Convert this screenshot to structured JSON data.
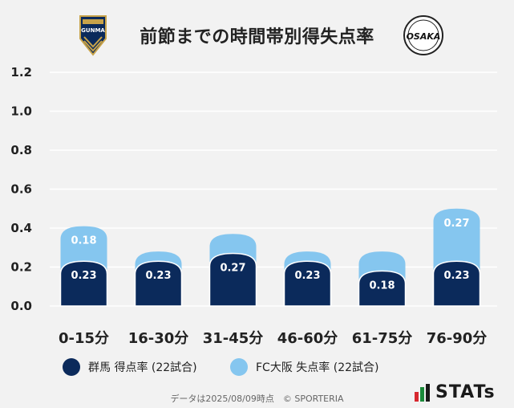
{
  "header": {
    "title": "前節までの時間帯別得失点率",
    "left_logo_text": "GUNMA",
    "right_logo_text": "OSAKA"
  },
  "legend": {
    "items": [
      {
        "label": "群馬 得点率 (22試合)",
        "color": "#0b2a5b"
      },
      {
        "label": "FC大阪 失点率 (22試合)",
        "color": "#85c6ef"
      }
    ]
  },
  "footer": {
    "note": "データは2025/08/09時点　© SPORTERIA",
    "brand": "STATs"
  },
  "chart_data": {
    "type": "bar",
    "categories": [
      "0-15分",
      "16-30分",
      "31-45分",
      "46-60分",
      "61-75分",
      "76-90分"
    ],
    "series": [
      {
        "name": "群馬 得点率 (22試合)",
        "values": [
          0.23,
          0.23,
          0.27,
          0.23,
          0.18,
          0.23
        ],
        "labels": [
          "0.23",
          "0.23",
          "0.27",
          "0.23",
          "0.18",
          "0.23"
        ],
        "color": "#0b2a5b"
      },
      {
        "name": "FC大阪 失点率 (22試合)",
        "values": [
          0.18,
          0.05,
          0.1,
          0.05,
          0.1,
          0.27
        ],
        "labels": [
          "0.18",
          "",
          "",
          "",
          "",
          "0.27"
        ],
        "color": "#85c6ef"
      }
    ],
    "stacked": true,
    "ylim": [
      0,
      1.2
    ],
    "yticks": [
      "0.0",
      "0.2",
      "0.4",
      "0.6",
      "0.8",
      "1.0",
      "1.2"
    ],
    "grid": true
  }
}
